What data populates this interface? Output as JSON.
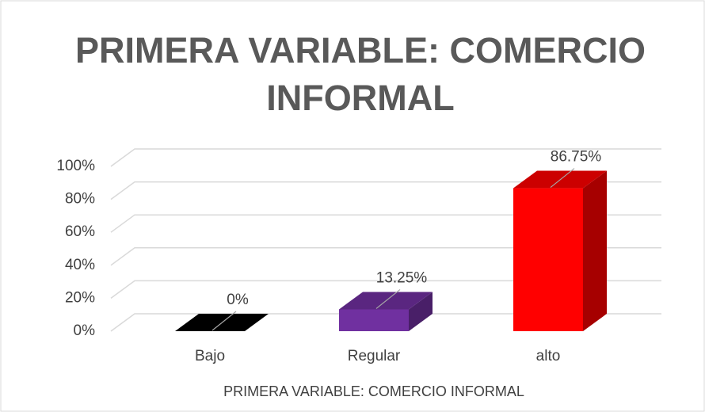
{
  "chart_data": {
    "type": "bar3d",
    "title": "PRIMERA VARIABLE: COMERCIO INFORMAL",
    "x_label": "PRIMERA VARIABLE: COMERCIO INFORMAL",
    "categories": [
      "Bajo",
      "Regular",
      "alto"
    ],
    "values": [
      0,
      13.25,
      86.75
    ],
    "value_labels": [
      "0%",
      "13.25%",
      "86.75%"
    ],
    "colors": [
      "#000000",
      "#7030a0",
      "#ff0000"
    ],
    "ylim": [
      0,
      100
    ],
    "yticks": [
      {
        "value": 0,
        "label": "0%"
      },
      {
        "value": 20,
        "label": "20%"
      },
      {
        "value": 40,
        "label": "40%"
      },
      {
        "value": 60,
        "label": "60%"
      },
      {
        "value": 80,
        "label": "80%"
      },
      {
        "value": 100,
        "label": "100%"
      }
    ],
    "grid": true
  }
}
